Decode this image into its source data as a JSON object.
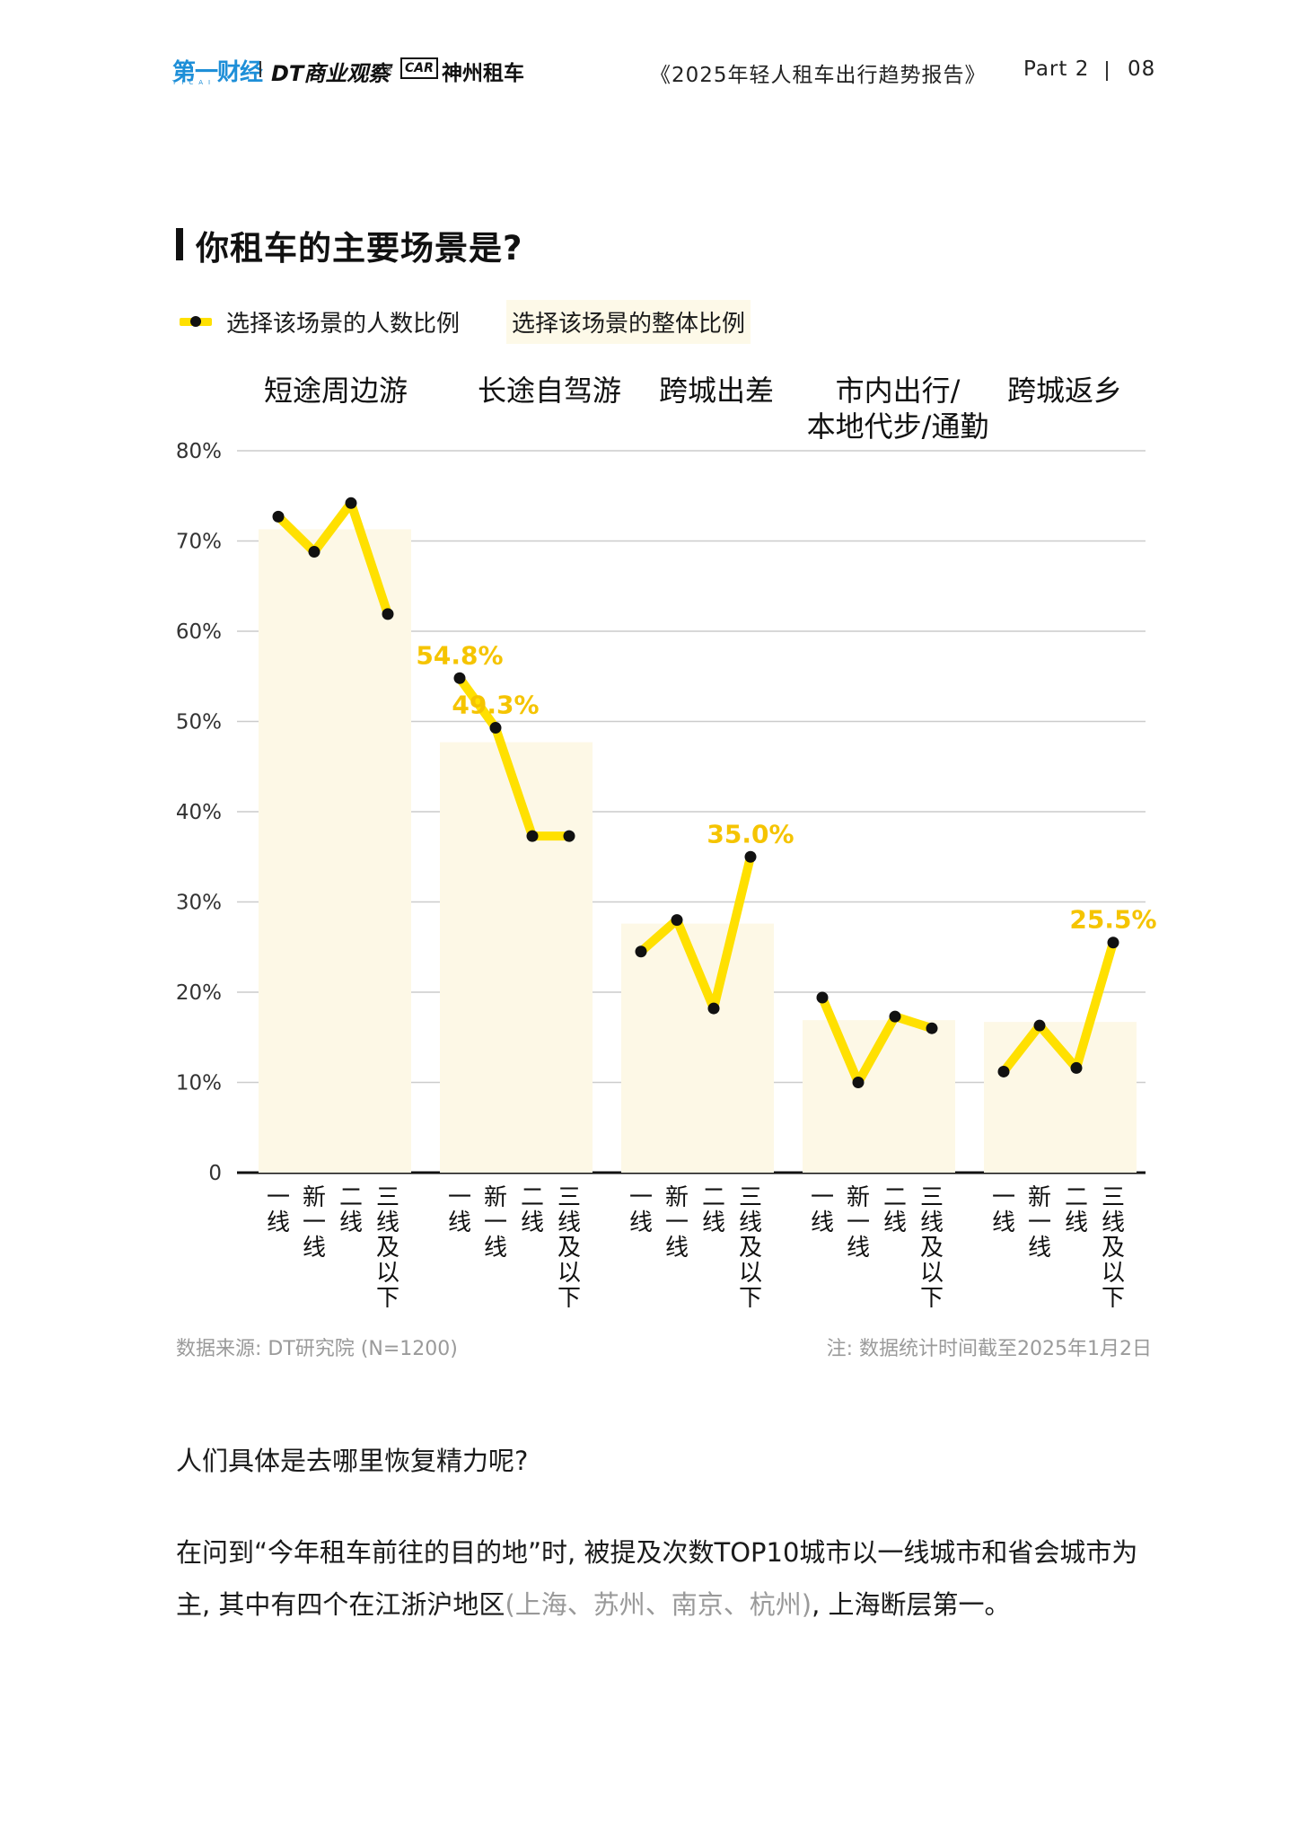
{
  "header": {
    "logo_yicai": "第一财经",
    "logo_yicai_sub": "YICAI",
    "logo_dt": "DT商业观察",
    "logo_times": "×",
    "logo_car_box": "CAR",
    "logo_car": "神州租车",
    "report_title": "《2025年轻人租车出行趋势报告》",
    "part_label": "Part 2",
    "page_number": "08"
  },
  "chart_title": "你租车的主要场景是?",
  "legend": {
    "line_label": "选择该场景的人数比例",
    "bar_label": "选择该场景的整体比例"
  },
  "chart_data": {
    "type": "bar",
    "title": "你租车的主要场景是?",
    "ylim": [
      0,
      80
    ],
    "yticks": [
      "0",
      "10%",
      "20%",
      "30%",
      "40%",
      "50%",
      "60%",
      "70%",
      "80%"
    ],
    "grid": true,
    "legend_position": "top-left",
    "categories": [
      "短途周边游",
      "长途自驾游",
      "跨城出差",
      "市内出行/本地代步/通勤",
      "跨城返乡"
    ],
    "category_lines": [
      [
        "短途周边游"
      ],
      [
        "长途自驾游"
      ],
      [
        "跨城出差"
      ],
      [
        "市内出行/",
        "本地代步/通勤"
      ],
      [
        "跨城返乡"
      ]
    ],
    "subcategories": [
      "一线",
      "新一线",
      "二线",
      "三线及以下"
    ],
    "series": [
      {
        "name": "选择该场景的整体比例",
        "type": "bar",
        "values": [
          71.3,
          47.7,
          27.6,
          16.9,
          16.7
        ]
      },
      {
        "name": "选择该场景的人数比例",
        "type": "line",
        "values": [
          [
            72.7,
            68.8,
            74.2,
            61.9
          ],
          [
            54.8,
            49.3,
            37.3,
            37.3
          ],
          [
            24.5,
            28.0,
            18.2,
            35.0
          ],
          [
            19.4,
            10.0,
            17.3,
            16.0
          ],
          [
            11.2,
            16.3,
            11.6,
            25.5
          ]
        ]
      }
    ],
    "data_labels": [
      {
        "group": 1,
        "point": 0,
        "text": "54.8%"
      },
      {
        "group": 1,
        "point": 1,
        "text": "49.3%"
      },
      {
        "group": 2,
        "point": 3,
        "text": "35.0%"
      },
      {
        "group": 4,
        "point": 3,
        "text": "25.5%"
      }
    ],
    "colors": {
      "bar": "#fdf8e6",
      "line": "#ffe000",
      "dot": "#111111",
      "label": "#f5c400",
      "grid": "#cccccc",
      "axis": "#111111"
    }
  },
  "source": "数据来源: DT研究院 (N=1200)",
  "note": "注: 数据统计时间截至2025年1月2日",
  "paragraph1": "人们具体是去哪里恢复精力呢?",
  "paragraph2_a": "在问到“今年租车前往的目的地”时, 被提及次数TOP10城市以一线城市和省会城市为主, 其中有四个在江浙沪地区",
  "paragraph2_muted": "(上海、苏州、南京、杭州)",
  "paragraph2_b": ", 上海断层第一。"
}
